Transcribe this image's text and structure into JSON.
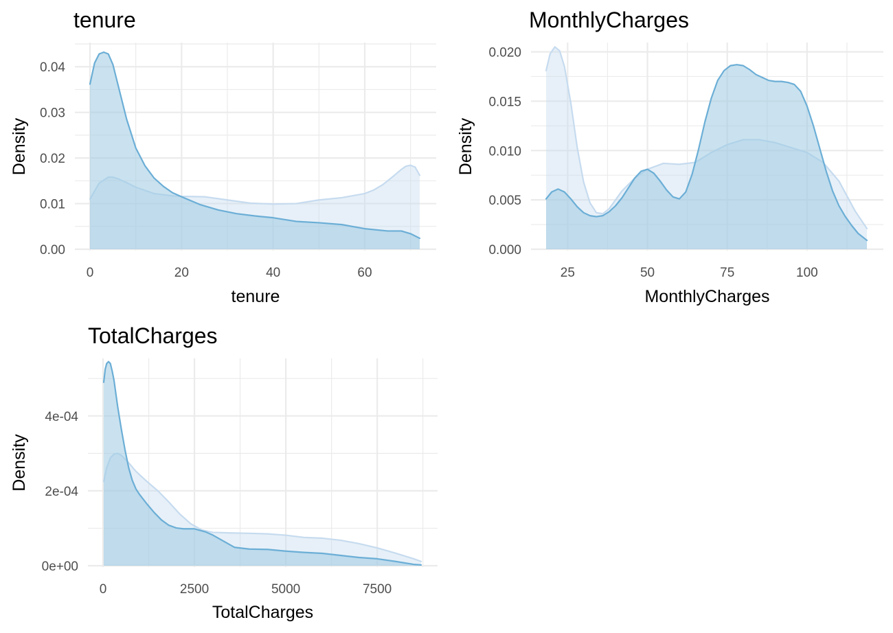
{
  "colors": {
    "group1_fill": "#c6dbef",
    "group1_line": "#c6dbef",
    "group2_fill": "#9ecae1",
    "group2_line": "#6baed6",
    "grid": "#ebebeb",
    "tick_text": "#4d4d4d"
  },
  "chart_data": [
    {
      "type": "area",
      "title": "tenure",
      "xlabel": "tenure",
      "ylabel": "Density",
      "xlim": [
        0,
        72
      ],
      "ylim": [
        0,
        0.045
      ],
      "x_ticks": [
        0,
        20,
        40,
        60
      ],
      "x_tick_labels": [
        "0",
        "20",
        "40",
        "60"
      ],
      "y_ticks": [
        0,
        0.01,
        0.02,
        0.03,
        0.04
      ],
      "y_tick_labels": [
        "0.00",
        "0.01",
        "0.02",
        "0.03",
        "0.04"
      ],
      "grid": true,
      "series": [
        {
          "x": [
            0,
            2,
            4,
            5,
            6,
            8,
            10,
            14,
            18,
            20,
            25,
            30,
            35,
            40,
            45,
            50,
            55,
            60,
            62,
            64,
            66,
            68,
            69,
            70,
            71,
            72
          ],
          "y": [
            0.011,
            0.0145,
            0.0158,
            0.0158,
            0.0155,
            0.0146,
            0.0136,
            0.0122,
            0.0117,
            0.0116,
            0.0115,
            0.0108,
            0.0101,
            0.0099,
            0.01,
            0.0108,
            0.0113,
            0.0122,
            0.013,
            0.0142,
            0.0158,
            0.0175,
            0.0182,
            0.0184,
            0.018,
            0.0162
          ]
        },
        {
          "x": [
            0,
            1,
            2,
            3,
            4,
            5,
            6,
            8,
            10,
            12,
            14,
            16,
            18,
            20,
            24,
            28,
            32,
            36,
            40,
            45,
            50,
            55,
            60,
            65,
            68,
            70,
            72
          ],
          "y": [
            0.0362,
            0.0408,
            0.0428,
            0.0432,
            0.0428,
            0.0405,
            0.0365,
            0.0285,
            0.0222,
            0.0183,
            0.0156,
            0.0138,
            0.0124,
            0.0115,
            0.0098,
            0.0086,
            0.0078,
            0.0073,
            0.0069,
            0.0061,
            0.0058,
            0.0054,
            0.0045,
            0.004,
            0.004,
            0.0034,
            0.0024
          ]
        }
      ]
    },
    {
      "type": "area",
      "title": "MonthlyCharges",
      "xlabel": "MonthlyCharges",
      "ylabel": "Density",
      "xlim": [
        18.25,
        118.75
      ],
      "ylim": [
        0,
        0.0208
      ],
      "x_ticks": [
        25,
        50,
        75,
        100
      ],
      "x_tick_labels": [
        "25",
        "50",
        "75",
        "100"
      ],
      "y_ticks": [
        0,
        0.005,
        0.01,
        0.015,
        0.02
      ],
      "y_tick_labels": [
        "0.000",
        "0.005",
        "0.010",
        "0.015",
        "0.020"
      ],
      "grid": true,
      "series": [
        {
          "x": [
            18.25,
            19.5,
            21,
            22.5,
            24,
            26,
            28,
            30,
            32,
            34,
            36,
            38,
            42,
            46,
            50,
            55,
            60,
            65,
            70,
            75,
            80,
            85,
            90,
            95,
            100,
            105,
            110,
            115,
            118.75
          ],
          "y": [
            0.0181,
            0.0198,
            0.0205,
            0.0201,
            0.0185,
            0.0148,
            0.0103,
            0.0068,
            0.0047,
            0.0037,
            0.0036,
            0.0041,
            0.0059,
            0.0072,
            0.0081,
            0.0087,
            0.0086,
            0.0088,
            0.0098,
            0.0106,
            0.0111,
            0.0111,
            0.0108,
            0.0103,
            0.0098,
            0.0088,
            0.0069,
            0.0039,
            0.0021
          ]
        },
        {
          "x": [
            18.25,
            20,
            22,
            24,
            26,
            28,
            30,
            32,
            34,
            36,
            38,
            40,
            42,
            44,
            46,
            48,
            50,
            52,
            54,
            56,
            58,
            60,
            62,
            64,
            66,
            68,
            70,
            72,
            74,
            76,
            78,
            80,
            82,
            84,
            86,
            88,
            90,
            92,
            94,
            96,
            98,
            100,
            102,
            104,
            106,
            108,
            110,
            112,
            114,
            116,
            118.75
          ],
          "y": [
            0.0051,
            0.0058,
            0.0061,
            0.0058,
            0.0051,
            0.0043,
            0.0037,
            0.0034,
            0.0033,
            0.0034,
            0.0038,
            0.0044,
            0.0052,
            0.0062,
            0.0072,
            0.0079,
            0.0081,
            0.0077,
            0.0069,
            0.006,
            0.0053,
            0.0051,
            0.0058,
            0.0076,
            0.0101,
            0.0129,
            0.0153,
            0.0171,
            0.0181,
            0.0186,
            0.0187,
            0.0186,
            0.0182,
            0.0177,
            0.0174,
            0.0171,
            0.017,
            0.017,
            0.0169,
            0.0167,
            0.016,
            0.0145,
            0.0125,
            0.0102,
            0.0079,
            0.0059,
            0.0044,
            0.0033,
            0.0024,
            0.0016,
            0.0009
          ]
        }
      ]
    },
    {
      "type": "area",
      "title": "TotalCharges",
      "xlabel": "TotalCharges",
      "ylabel": "Density",
      "xlim": [
        0,
        8700
      ],
      "ylim": [
        0,
        0.00055
      ],
      "x_ticks": [
        0,
        2500,
        5000,
        7500
      ],
      "x_tick_labels": [
        "0",
        "2500",
        "5000",
        "7500"
      ],
      "y_ticks": [
        0,
        0.0002,
        0.0004
      ],
      "y_tick_labels": [
        "0e+00",
        "2e-04",
        "4e-04"
      ],
      "grid": true,
      "series": [
        {
          "x": [
            19,
            100,
            200,
            300,
            400,
            500,
            700,
            900,
            1200,
            1500,
            1800,
            2100,
            2400,
            2700,
            3000,
            3500,
            4000,
            4500,
            5000,
            5500,
            6000,
            6500,
            7000,
            7500,
            8000,
            8500,
            8700
          ],
          "y": [
            0.000225,
            0.000262,
            0.000288,
            0.000298,
            0.0003,
            0.000295,
            0.000275,
            0.000252,
            0.000225,
            0.0002,
            0.00017,
            0.000138,
            0.000112,
            9.55e-05,
            8.9e-05,
            8.75e-05,
            8.65e-05,
            8.5e-05,
            8.15e-05,
            7.55e-05,
            7.35e-05,
            6.8e-05,
            5.9e-05,
            4.75e-05,
            3.35e-05,
            1.85e-05,
            1.15e-05
          ]
        },
        {
          "x": [
            19,
            60,
            100,
            150,
            200,
            250,
            300,
            350,
            400,
            500,
            600,
            700,
            800,
            900,
            1000,
            1200,
            1400,
            1600,
            1800,
            2000,
            2200,
            2500,
            2800,
            3000,
            3300,
            3600,
            4000,
            4500,
            5000,
            5500,
            6000,
            6500,
            7000,
            7500,
            8000,
            8500,
            8700
          ],
          "y": [
            0.00049,
            0.000525,
            0.00054,
            0.000545,
            0.00054,
            0.00052,
            0.000495,
            0.00046,
            0.000425,
            0.000365,
            0.00031,
            0.000262,
            0.000228,
            0.000205,
            0.00019,
            0.000165,
            0.000142,
            0.000122,
            0.000108,
            0.000101,
            9.85e-05,
            9.85e-05,
            9.05e-05,
            8.2e-05,
            6.55e-05,
            4.9e-05,
            4.45e-05,
            4.35e-05,
            3.9e-05,
            3.55e-05,
            3.3e-05,
            2.75e-05,
            2.2e-05,
            1.85e-05,
            1.15e-05,
            3.5e-06,
            2e-06
          ]
        }
      ]
    }
  ]
}
